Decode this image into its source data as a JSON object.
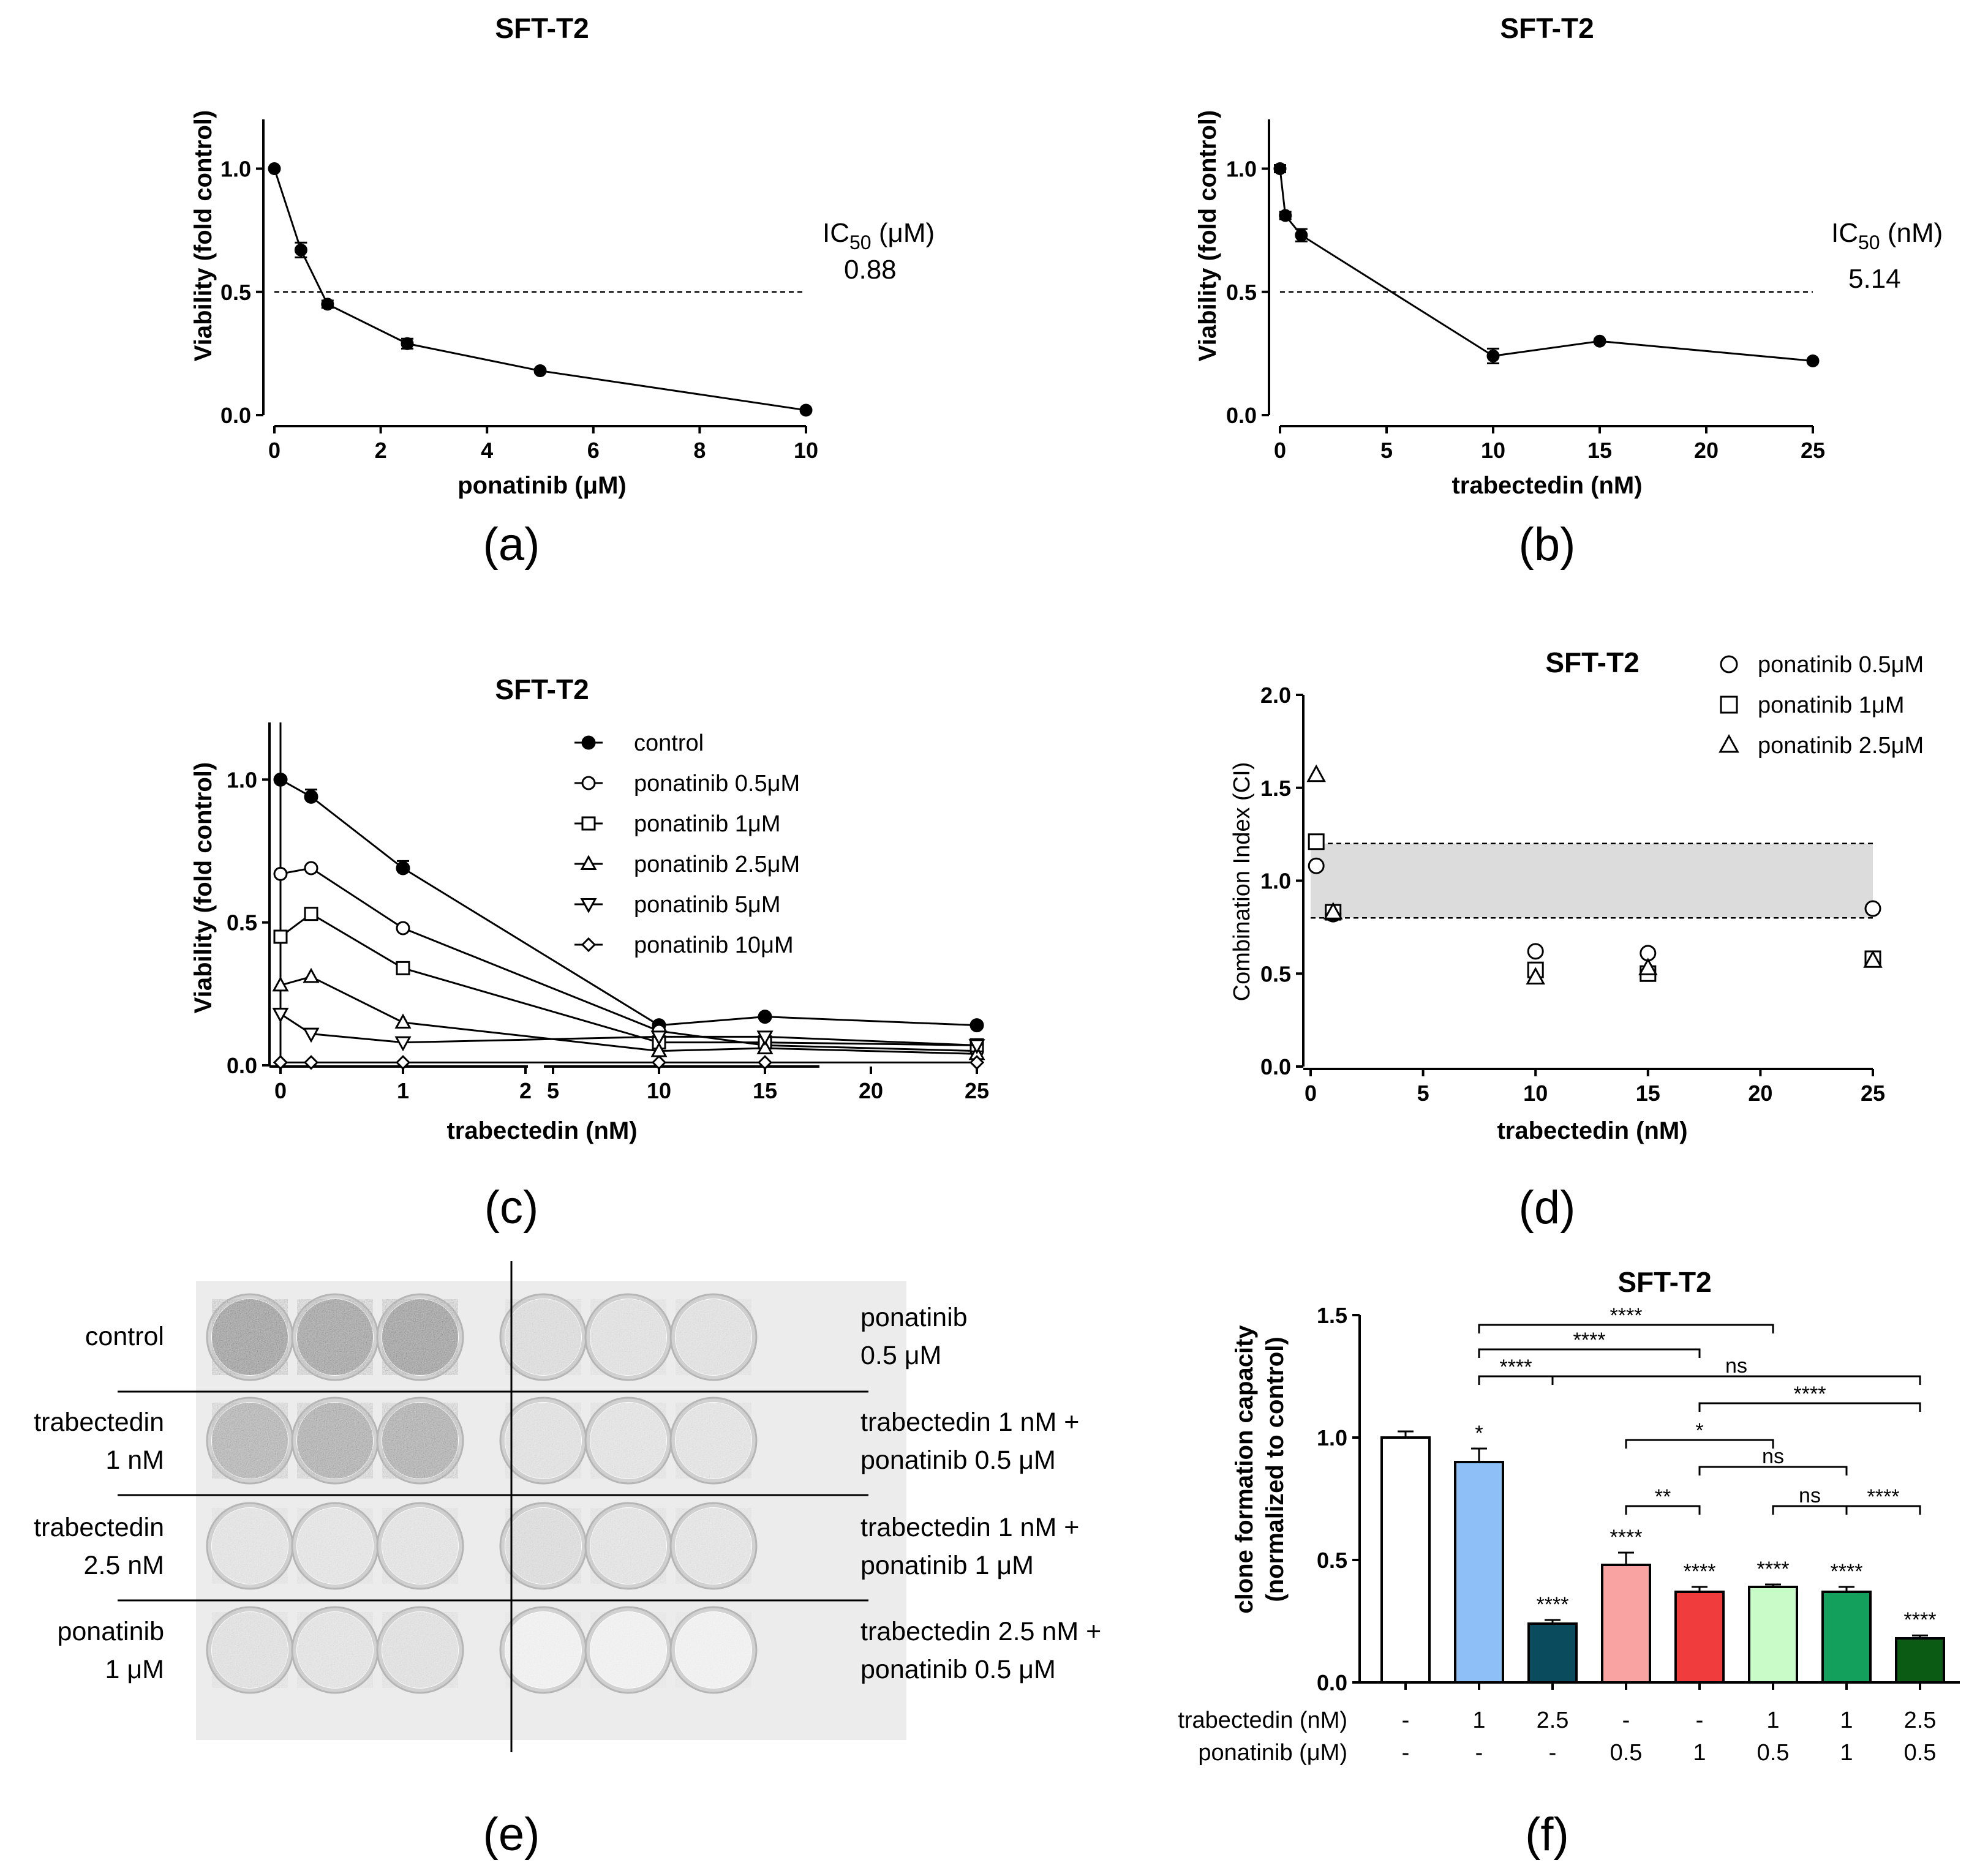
{
  "chart_data": [
    {
      "panel": "(a)",
      "type": "line",
      "title": "SFT-T2",
      "xlabel": "ponatinib (μM)",
      "ylabel": "Viability (fold control)",
      "xlim": [
        0,
        10
      ],
      "ylim": [
        0,
        1.2
      ],
      "xticks": [
        "0",
        "2",
        "4",
        "6",
        "8",
        "10"
      ],
      "yticks": [
        "0.0",
        "0.5",
        "1.0"
      ],
      "x": [
        0,
        0.5,
        1,
        2.5,
        5,
        10
      ],
      "y": [
        1.0,
        0.67,
        0.45,
        0.29,
        0.18,
        0.02
      ],
      "err": [
        0,
        0.03,
        0.015,
        0.02,
        0.008,
        0.005
      ],
      "reference_line": 0.5,
      "ic50_label": "IC50 (μM)",
      "ic50_value": "0.88"
    },
    {
      "panel": "(b)",
      "type": "line",
      "title": "SFT-T2",
      "xlabel": "trabectedin (nM)",
      "ylabel": "Viability (fold control)",
      "xlim": [
        0,
        25
      ],
      "ylim": [
        0,
        1.2
      ],
      "xticks": [
        "0",
        "5",
        "10",
        "15",
        "20",
        "25"
      ],
      "yticks": [
        "0.0",
        "0.5",
        "1.0"
      ],
      "x": [
        0,
        0.25,
        1,
        10,
        15,
        25
      ],
      "y": [
        1.0,
        0.81,
        0.73,
        0.24,
        0.3,
        0.22
      ],
      "err": [
        0.015,
        0.015,
        0.025,
        0.03,
        0.005,
        0.005
      ],
      "reference_line": 0.5,
      "ic50_label": "IC50 (nM)",
      "ic50_value": "5.14"
    },
    {
      "panel": "(c)",
      "type": "line",
      "title": "SFT-T2",
      "xlabel": "trabectedin (nM)",
      "ylabel": "Viability (fold control)",
      "ylim": [
        0,
        1.2
      ],
      "x_axis_break": true,
      "xticks": [
        "0",
        "1",
        "2",
        "5",
        "10",
        "15",
        "20",
        "25"
      ],
      "yticks": [
        "0.0",
        "0.5",
        "1.0"
      ],
      "x": [
        0,
        0.25,
        1,
        10,
        15,
        25
      ],
      "series": [
        {
          "name": "control",
          "marker": "filled-circle",
          "values": [
            1.0,
            0.94,
            0.69,
            0.14,
            0.17,
            0.14
          ]
        },
        {
          "name": "ponatinib 0.5μM",
          "marker": "circle",
          "values": [
            0.67,
            0.69,
            0.48,
            0.12,
            0.07,
            0.05
          ]
        },
        {
          "name": "ponatinib 1μM",
          "marker": "square",
          "values": [
            0.45,
            0.53,
            0.34,
            0.08,
            0.08,
            0.07
          ]
        },
        {
          "name": "ponatinib 2.5μM",
          "marker": "triangle",
          "values": [
            0.28,
            0.31,
            0.15,
            0.05,
            0.06,
            0.04
          ]
        },
        {
          "name": "ponatinib 5μM",
          "marker": "triangle-down",
          "values": [
            0.18,
            0.11,
            0.08,
            0.1,
            0.1,
            0.07
          ]
        },
        {
          "name": "ponatinib 10μM",
          "marker": "diamond",
          "values": [
            0.01,
            0.01,
            0.01,
            0.01,
            0.01,
            0.01
          ]
        }
      ]
    },
    {
      "panel": "(d)",
      "type": "scatter",
      "title": "SFT-T2",
      "xlabel": "trabectedin (nM)",
      "ylabel": "Combination Index (CI)",
      "xlim": [
        0,
        25
      ],
      "ylim": [
        0,
        2.0
      ],
      "xticks": [
        "0",
        "5",
        "10",
        "15",
        "20",
        "25"
      ],
      "yticks": [
        "0.0",
        "0.5",
        "1.0",
        "1.5",
        "2.0"
      ],
      "band": [
        0.8,
        1.2
      ],
      "legend_position": "top-right",
      "series": [
        {
          "name": "ponatinib 0.5μM",
          "marker": "circle",
          "x": [
            0.25,
            1,
            10,
            15,
            25
          ],
          "y": [
            1.08,
            0.82,
            0.62,
            0.61,
            0.85
          ]
        },
        {
          "name": "ponatinib 1μM",
          "marker": "square",
          "x": [
            0.25,
            1,
            10,
            15,
            25
          ],
          "y": [
            1.21,
            0.83,
            0.52,
            0.5,
            0.58
          ]
        },
        {
          "name": "ponatinib 2.5μM",
          "marker": "triangle",
          "x": [
            0.25,
            1,
            10,
            15,
            25
          ],
          "y": [
            1.57,
            0.83,
            0.48,
            0.53,
            0.57
          ]
        }
      ]
    },
    {
      "panel": "(f)",
      "type": "bar",
      "title": "SFT-T2",
      "ylabel": "clone formation capacity (normalized to control)",
      "ylabel_line1": "clone formation capacity",
      "ylabel_line2": "(normalized to control)",
      "ylim": [
        0,
        1.5
      ],
      "yticks": [
        "0.0",
        "0.5",
        "1.0",
        "1.5"
      ],
      "values": [
        1.0,
        0.9,
        0.24,
        0.48,
        0.37,
        0.39,
        0.37,
        0.18
      ],
      "err": [
        0.025,
        0.055,
        0.015,
        0.05,
        0.02,
        0.01,
        0.02,
        0.012
      ],
      "colors": [
        "#ffffff",
        "#8ec0f7",
        "#0a4b5e",
        "#f9a3a3",
        "#f03c3c",
        "#c9fbc9",
        "#12a05c",
        "#0b5b14"
      ],
      "bar_stars": [
        "",
        "*",
        "****",
        "****",
        "****",
        "****",
        "****",
        "****"
      ],
      "row_labels": [
        "trabectedin (nM)",
        "ponatinib (μM)"
      ],
      "trabectedin": [
        "-",
        "1",
        "2.5",
        "-",
        "-",
        "1",
        "1",
        "2.5"
      ],
      "ponatinib": [
        "-",
        "-",
        "-",
        "0.5",
        "1",
        "0.5",
        "1",
        "0.5"
      ],
      "comparisons": [
        {
          "from": 2,
          "to": 6,
          "y": 1.46,
          "label": "****"
        },
        {
          "from": 2,
          "to": 5,
          "y": 1.36,
          "label": "****"
        },
        {
          "from": 2,
          "to": 3,
          "y": 1.25,
          "label": "****"
        },
        {
          "from": 3,
          "to": 8,
          "y": 1.25,
          "label": "ns"
        },
        {
          "from": 5,
          "to": 8,
          "y": 1.14,
          "label": "****"
        },
        {
          "from": 4,
          "to": 6,
          "y": 0.99,
          "label": "*"
        },
        {
          "from": 5,
          "to": 7,
          "y": 0.88,
          "label": "ns"
        },
        {
          "from": 4,
          "to": 5,
          "y": 0.72,
          "label": "**"
        },
        {
          "from": 6,
          "to": 7,
          "y": 0.72,
          "label": "ns"
        },
        {
          "from": 7,
          "to": 8,
          "y": 0.72,
          "label": "****"
        }
      ]
    }
  ],
  "panel_e": {
    "label": "(e)",
    "left_labels": [
      [
        "control"
      ],
      [
        "trabectedin",
        "1 nM"
      ],
      [
        "trabectedin",
        "2.5 nM"
      ],
      [
        "ponatinib",
        "1 μM"
      ]
    ],
    "right_labels": [
      [
        "ponatinib",
        "0.5 μM"
      ],
      [
        "trabectedin 1 nM +",
        "ponatinib 0.5 μM"
      ],
      [
        "trabectedin 1 nM +",
        "ponatinib 1 μM"
      ],
      [
        "trabectedin 2.5 nM +",
        "ponatinib 0.5 μM"
      ]
    ],
    "well_density": [
      [
        0.95,
        0.9,
        0.95,
        0.35,
        0.32,
        0.32
      ],
      [
        0.75,
        0.8,
        0.8,
        0.32,
        0.3,
        0.3
      ],
      [
        0.3,
        0.27,
        0.3,
        0.35,
        0.3,
        0.28
      ],
      [
        0.33,
        0.3,
        0.33,
        0.15,
        0.15,
        0.15
      ]
    ]
  }
}
